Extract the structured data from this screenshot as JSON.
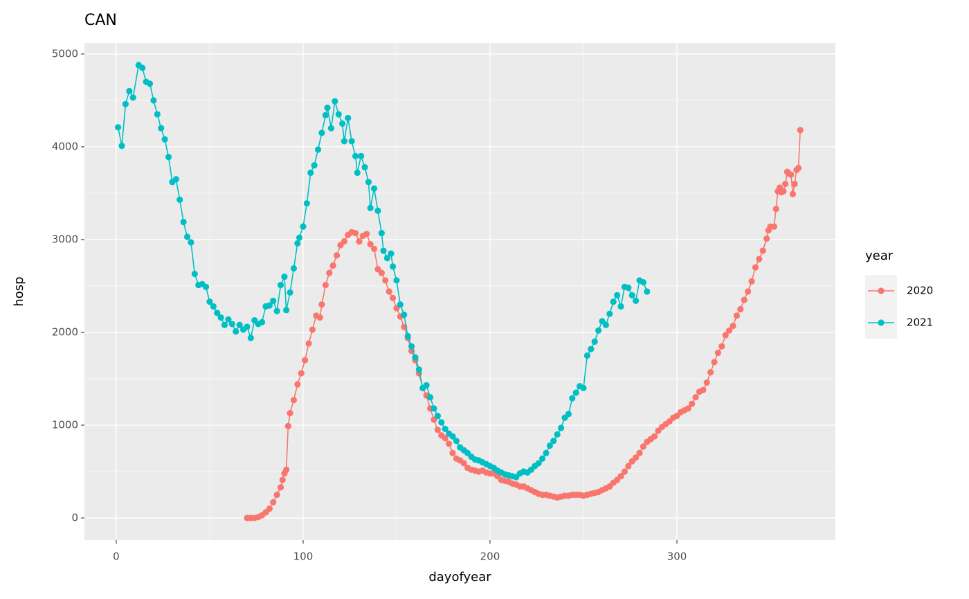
{
  "chart_data": {
    "type": "line",
    "title": "CAN",
    "x_label": "dayofyear",
    "y_label": "hosp",
    "legend_title": "year",
    "xlim": [
      -17,
      384.8
    ],
    "ylim": [
      -238.8,
      5119
    ],
    "xticks": [
      0,
      100,
      200,
      300
    ],
    "yticks": [
      0,
      1000,
      2000,
      3000,
      4000,
      5000
    ],
    "grid": true,
    "series": [
      {
        "name": "2020",
        "color": "#F8766D",
        "x": [
          70,
          72,
          74,
          76,
          78,
          80,
          82,
          84,
          86,
          88,
          89,
          90,
          91,
          92,
          93,
          95,
          97,
          99,
          101,
          103,
          105,
          107,
          109,
          110,
          112,
          114,
          116,
          118,
          120,
          122,
          124,
          126,
          128,
          130,
          132,
          134,
          136,
          138,
          140,
          142,
          144,
          146,
          148,
          150,
          152,
          154,
          156,
          158,
          160,
          162,
          164,
          166,
          168,
          170,
          172,
          174,
          176,
          178,
          180,
          182,
          184,
          186,
          188,
          190,
          192,
          194,
          196,
          198,
          200,
          202,
          204,
          206,
          208,
          210,
          212,
          214,
          216,
          218,
          220,
          222,
          224,
          226,
          228,
          230,
          232,
          234,
          236,
          238,
          240,
          242,
          244,
          246,
          248,
          250,
          252,
          254,
          256,
          258,
          260,
          262,
          264,
          266,
          268,
          270,
          272,
          274,
          276,
          278,
          280,
          282,
          284,
          286,
          288,
          290,
          292,
          294,
          296,
          298,
          300,
          302,
          304,
          306,
          308,
          310,
          312,
          314,
          316,
          318,
          320,
          322,
          324,
          326,
          328,
          330,
          332,
          334,
          336,
          338,
          340,
          342,
          344,
          346,
          348,
          349,
          350,
          352,
          353,
          354,
          355,
          356,
          357,
          358,
          359,
          360,
          361,
          362,
          363,
          364,
          365,
          366
        ],
        "values": [
          0,
          0,
          0,
          10,
          30,
          60,
          100,
          170,
          250,
          330,
          410,
          480,
          520,
          990,
          1130,
          1270,
          1440,
          1560,
          1700,
          1880,
          2030,
          2180,
          2160,
          2300,
          2510,
          2640,
          2720,
          2830,
          2940,
          2980,
          3050,
          3080,
          3070,
          2980,
          3040,
          3060,
          2950,
          2900,
          2680,
          2640,
          2560,
          2440,
          2370,
          2260,
          2170,
          2060,
          1940,
          1800,
          1700,
          1560,
          1400,
          1320,
          1180,
          1060,
          950,
          890,
          860,
          800,
          700,
          640,
          620,
          590,
          540,
          520,
          510,
          500,
          510,
          490,
          480,
          480,
          450,
          410,
          400,
          390,
          370,
          360,
          340,
          340,
          320,
          300,
          280,
          260,
          250,
          250,
          240,
          230,
          220,
          230,
          240,
          240,
          250,
          250,
          250,
          240,
          250,
          260,
          270,
          280,
          300,
          320,
          340,
          380,
          410,
          450,
          500,
          560,
          610,
          650,
          700,
          770,
          820,
          850,
          880,
          940,
          980,
          1010,
          1040,
          1080,
          1100,
          1140,
          1160,
          1180,
          1230,
          1300,
          1360,
          1380,
          1460,
          1570,
          1680,
          1780,
          1850,
          1970,
          2020,
          2070,
          2180,
          2250,
          2350,
          2440,
          2550,
          2700,
          2790,
          2880,
          3010,
          3100,
          3140,
          3140,
          3330,
          3520,
          3560,
          3510,
          3520,
          3600,
          3730,
          3710,
          3700,
          3490,
          3600,
          3750,
          3770,
          4180
        ]
      },
      {
        "name": "2021",
        "color": "#00BFC4",
        "x": [
          1,
          3,
          5,
          7,
          9,
          12,
          14,
          16,
          18,
          20,
          22,
          24,
          26,
          28,
          30,
          32,
          34,
          36,
          38,
          40,
          42,
          44,
          46,
          48,
          50,
          52,
          54,
          56,
          58,
          60,
          62,
          64,
          66,
          68,
          70,
          72,
          74,
          76,
          78,
          80,
          82,
          84,
          86,
          88,
          90,
          91,
          93,
          95,
          97,
          98,
          100,
          102,
          104,
          106,
          108,
          110,
          112,
          113,
          115,
          117,
          119,
          121,
          122,
          124,
          126,
          128,
          129,
          131,
          133,
          135,
          136,
          138,
          140,
          142,
          143,
          145,
          147,
          148,
          150,
          152,
          154,
          156,
          158,
          160,
          162,
          164,
          166,
          168,
          170,
          172,
          174,
          176,
          178,
          180,
          182,
          184,
          186,
          188,
          190,
          192,
          194,
          196,
          198,
          200,
          202,
          204,
          206,
          208,
          210,
          212,
          214,
          216,
          218,
          220,
          222,
          224,
          226,
          228,
          230,
          232,
          234,
          236,
          238,
          240,
          242,
          244,
          246,
          248,
          250,
          252,
          254,
          256,
          258,
          260,
          262,
          264,
          266,
          268,
          270,
          272,
          274,
          276,
          278,
          280,
          282,
          284
        ],
        "values": [
          4210,
          4010,
          4460,
          4600,
          4530,
          4880,
          4850,
          4700,
          4680,
          4500,
          4350,
          4200,
          4080,
          3890,
          3620,
          3650,
          3430,
          3190,
          3030,
          2970,
          2630,
          2510,
          2520,
          2490,
          2330,
          2280,
          2210,
          2160,
          2080,
          2140,
          2090,
          2010,
          2080,
          2030,
          2060,
          1940,
          2130,
          2090,
          2110,
          2280,
          2290,
          2340,
          2230,
          2510,
          2600,
          2240,
          2430,
          2690,
          2960,
          3020,
          3140,
          3390,
          3720,
          3800,
          3970,
          4150,
          4340,
          4420,
          4200,
          4490,
          4350,
          4250,
          4060,
          4310,
          4060,
          3900,
          3720,
          3900,
          3780,
          3620,
          3340,
          3550,
          3310,
          3070,
          2880,
          2800,
          2850,
          2710,
          2560,
          2300,
          2190,
          1960,
          1850,
          1730,
          1600,
          1400,
          1430,
          1300,
          1180,
          1100,
          1030,
          960,
          910,
          880,
          830,
          760,
          730,
          700,
          660,
          630,
          620,
          600,
          580,
          560,
          540,
          510,
          490,
          470,
          460,
          450,
          440,
          480,
          500,
          490,
          520,
          560,
          590,
          640,
          700,
          780,
          830,
          900,
          970,
          1080,
          1120,
          1290,
          1350,
          1420,
          1400,
          1750,
          1820,
          1900,
          2020,
          2120,
          2080,
          2200,
          2330,
          2400,
          2280,
          2490,
          2480,
          2400,
          2340,
          2560,
          2540,
          2440
        ]
      }
    ]
  }
}
